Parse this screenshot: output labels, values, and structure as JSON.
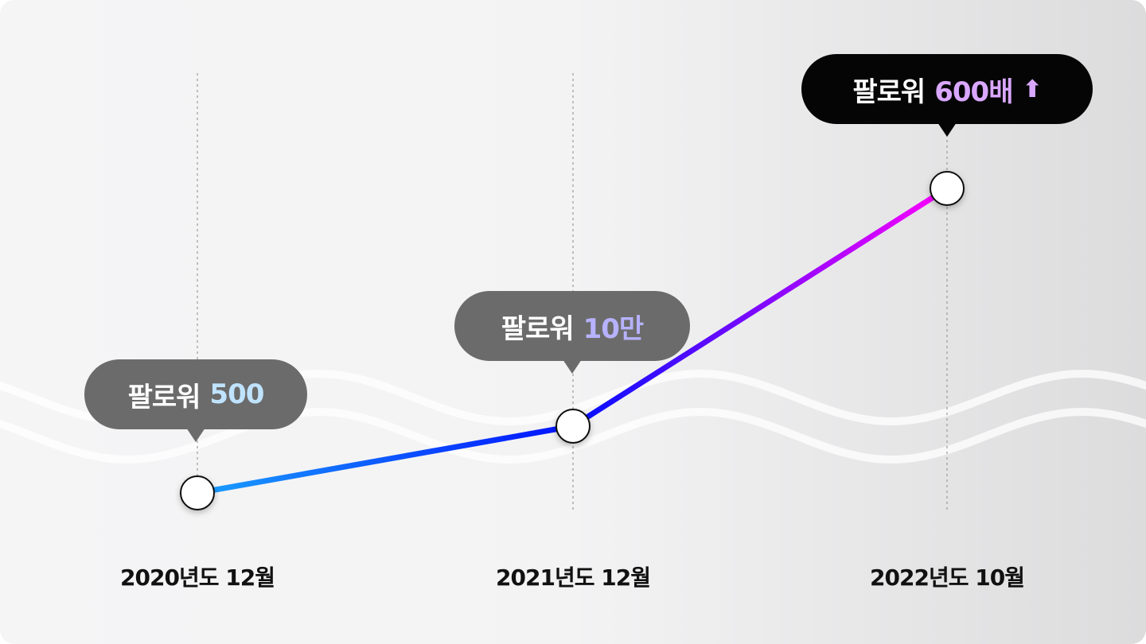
{
  "chart_data": {
    "type": "line",
    "x": [
      "2020년도 12월",
      "2021년도 12월",
      "2022년도 10월"
    ],
    "series": [
      {
        "values": [
          500,
          100000,
          300000
        ]
      }
    ],
    "annotations": [
      {
        "prefix": "팔로워",
        "value": "500",
        "accent_color": "#bfe3ff",
        "style": "gray"
      },
      {
        "prefix": "팔로워",
        "value": "10만",
        "accent_color": "#b7b2ff",
        "style": "gray"
      },
      {
        "prefix": "팔로워",
        "value": "600배",
        "arrow": "⬆",
        "accent_color": "#d9a7ff",
        "style": "black"
      }
    ],
    "line_gradient": [
      "#1aa0ff",
      "#0010ff",
      "#ff00ff"
    ],
    "grid": false
  }
}
